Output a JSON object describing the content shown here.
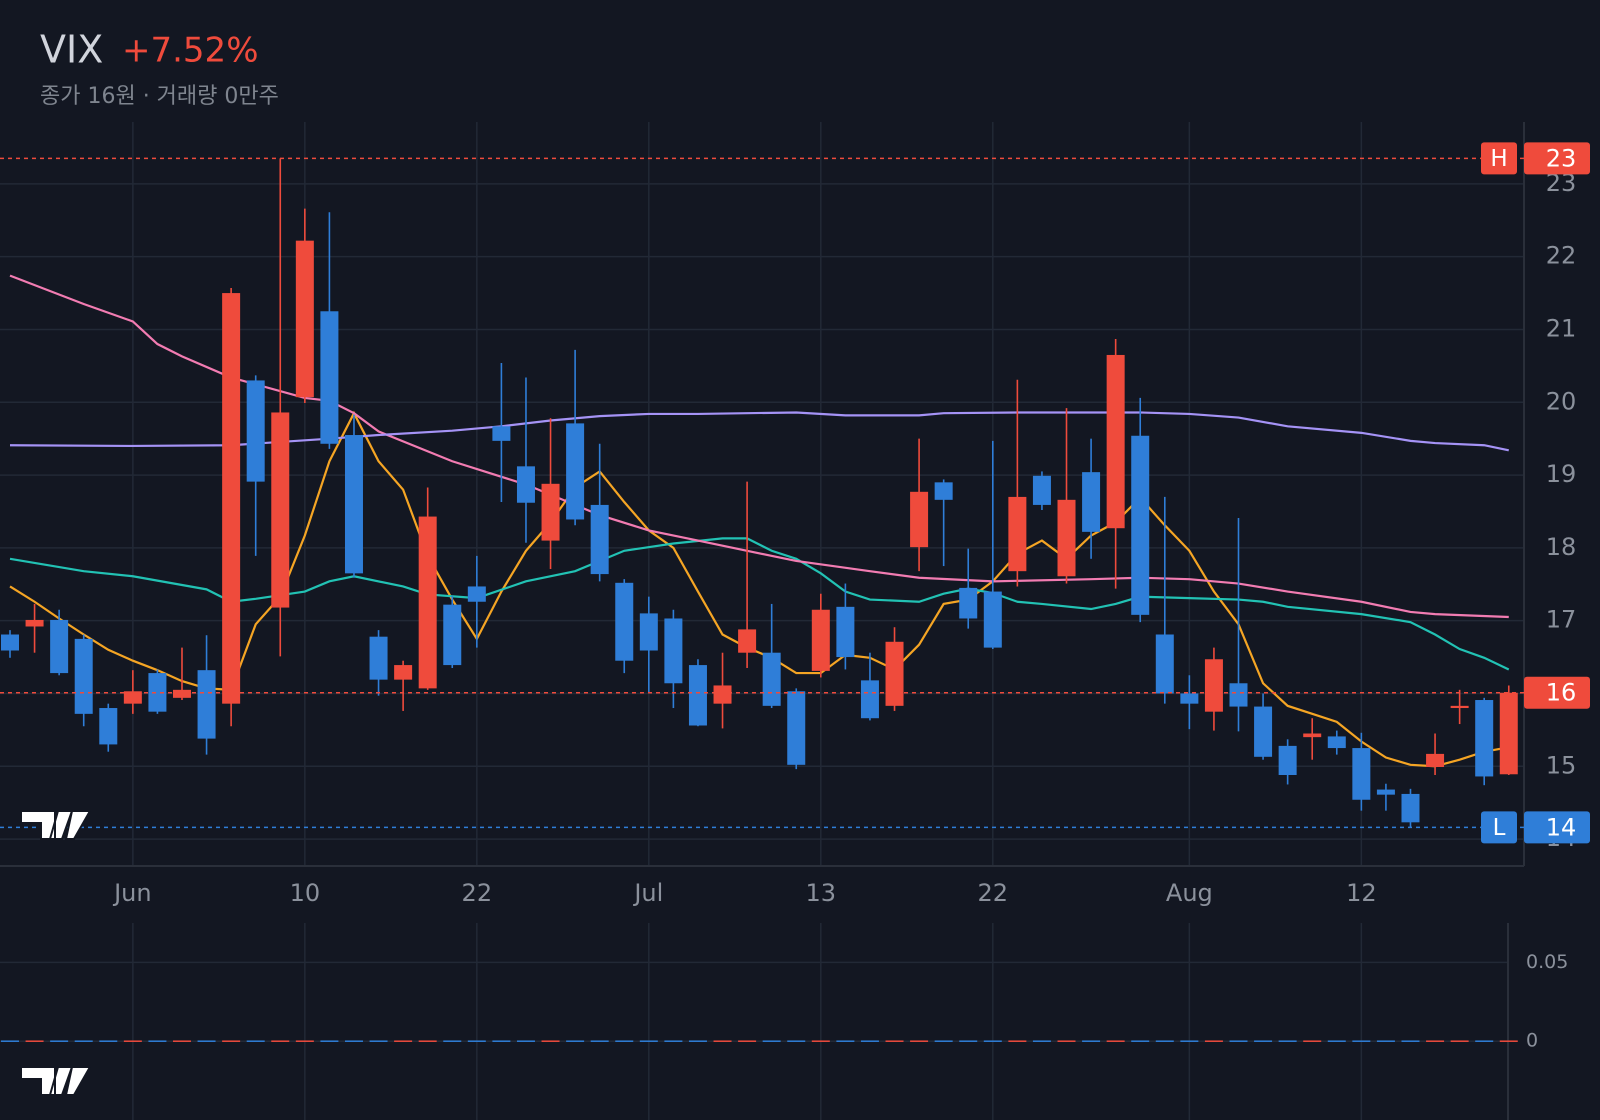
{
  "chart_data": {
    "type": "candlestick",
    "title": "VIX",
    "change": "+7.52%",
    "subtitle": "종가 16원 · 거래량 0만주",
    "categories": [
      null,
      null,
      null,
      null,
      null,
      "Jun",
      null,
      null,
      null,
      null,
      null,
      null,
      "10",
      null,
      null,
      null,
      null,
      null,
      null,
      "22",
      null,
      null,
      null,
      null,
      null,
      null,
      "Jul",
      null,
      null,
      null,
      null,
      null,
      null,
      "13",
      null,
      null,
      null,
      null,
      null,
      null,
      "22",
      null,
      null,
      null,
      null,
      null,
      null,
      null,
      "Aug",
      null,
      null,
      null,
      null,
      null,
      null,
      "12",
      null,
      null,
      null,
      null,
      null,
      null
    ],
    "open": [
      16.81,
      16.92,
      17.01,
      16.75,
      15.8,
      15.86,
      16.28,
      15.94,
      16.32,
      15.86,
      20.3,
      17.18,
      20.07,
      21.25,
      19.55,
      16.78,
      16.19,
      16.07,
      17.22,
      17.47,
      19.67,
      19.12,
      18.1,
      19.71,
      18.59,
      17.52,
      17.1,
      17.03,
      16.39,
      15.86,
      16.56,
      16.56,
      16.03,
      16.31,
      17.19,
      16.18,
      15.83,
      18.01,
      18.9,
      17.45,
      17.4,
      17.68,
      18.99,
      17.61,
      19.04,
      18.27,
      19.54,
      16.81,
      16.0,
      15.75,
      16.14,
      15.82,
      15.28,
      15.4,
      15.41,
      15.25,
      14.68,
      14.62,
      14.99,
      15.8,
      15.91,
      14.89
    ],
    "high": [
      16.87,
      17.23,
      17.15,
      16.81,
      15.86,
      16.32,
      16.33,
      16.63,
      16.8,
      21.57,
      20.37,
      23.35,
      22.66,
      22.61,
      19.83,
      16.87,
      16.45,
      18.83,
      17.34,
      17.89,
      20.54,
      20.34,
      19.78,
      20.72,
      19.43,
      17.57,
      17.33,
      17.15,
      16.47,
      16.56,
      18.91,
      17.23,
      16.07,
      17.37,
      17.51,
      16.56,
      16.91,
      19.5,
      18.94,
      17.99,
      19.47,
      20.31,
      19.05,
      19.92,
      19.5,
      20.87,
      20.06,
      18.7,
      16.25,
      16.63,
      18.41,
      16.0,
      15.37,
      15.66,
      15.49,
      15.46,
      14.76,
      14.69,
      15.45,
      16.05,
      15.94,
      16.11
    ],
    "low": [
      16.49,
      16.56,
      16.25,
      15.55,
      15.2,
      15.72,
      15.72,
      15.91,
      15.16,
      15.55,
      17.89,
      16.51,
      19.99,
      19.36,
      17.59,
      15.97,
      15.76,
      16.05,
      16.35,
      16.63,
      18.63,
      18.07,
      17.71,
      18.31,
      17.54,
      16.28,
      16.0,
      15.8,
      15.55,
      15.52,
      16.35,
      15.8,
      14.96,
      16.22,
      16.33,
      15.63,
      15.76,
      17.68,
      17.75,
      16.89,
      16.61,
      17.47,
      18.52,
      17.51,
      17.85,
      17.44,
      16.98,
      15.86,
      15.51,
      15.49,
      15.48,
      15.09,
      14.75,
      15.09,
      15.16,
      14.39,
      14.39,
      14.16,
      14.88,
      15.58,
      14.74,
      14.88
    ],
    "close": [
      16.59,
      17.01,
      16.28,
      15.72,
      15.3,
      16.03,
      15.75,
      16.05,
      15.38,
      21.5,
      18.91,
      19.86,
      22.22,
      19.43,
      17.65,
      16.19,
      16.39,
      18.43,
      16.39,
      17.26,
      19.47,
      18.62,
      18.88,
      18.39,
      17.64,
      16.45,
      16.59,
      16.14,
      15.56,
      16.11,
      16.88,
      15.83,
      15.02,
      17.15,
      16.5,
      15.66,
      16.71,
      18.77,
      18.66,
      17.03,
      16.63,
      18.7,
      18.59,
      18.66,
      18.22,
      20.65,
      17.08,
      16.0,
      15.86,
      16.47,
      15.82,
      15.13,
      14.88,
      15.45,
      15.25,
      14.54,
      14.61,
      14.23,
      15.17,
      15.83,
      14.86,
      16.01
    ],
    "up_color": "#ef4b3c",
    "down_color": "#2f7ed8",
    "moving_averages": [
      {
        "color": "#f5a524",
        "values": [
          17.47,
          17.26,
          17.03,
          16.81,
          16.6,
          16.45,
          16.32,
          16.17,
          16.07,
          16.05,
          16.95,
          17.33,
          18.17,
          19.19,
          19.85,
          19.19,
          18.8,
          17.89,
          17.29,
          16.75,
          17.4,
          17.96,
          18.35,
          18.83,
          19.05,
          18.63,
          18.24,
          18.0,
          17.4,
          16.81,
          16.63,
          16.49,
          16.28,
          16.28,
          16.53,
          16.49,
          16.33,
          16.67,
          17.23,
          17.29,
          17.54,
          17.92,
          18.1,
          17.85,
          18.17,
          18.35,
          18.69,
          18.31,
          17.96,
          17.4,
          16.95,
          16.14,
          15.83,
          15.72,
          15.61,
          15.34,
          15.12,
          15.02,
          15.0,
          15.09,
          15.2,
          15.26
        ]
      },
      {
        "color": "#22c2b4",
        "x": [
          0,
          3,
          5,
          8,
          9,
          10,
          12,
          13,
          14,
          16,
          17,
          19,
          21,
          23,
          25,
          27,
          29,
          30,
          31,
          32,
          33,
          34,
          35,
          37,
          38,
          39,
          40,
          41,
          42,
          44,
          45,
          46,
          48,
          50,
          51,
          52,
          55,
          57,
          58,
          59,
          60,
          61
        ],
        "values": [
          17.85,
          17.68,
          17.61,
          17.43,
          17.26,
          17.3,
          17.4,
          17.54,
          17.61,
          17.47,
          17.36,
          17.31,
          17.54,
          17.68,
          17.96,
          18.06,
          18.13,
          18.13,
          17.96,
          17.85,
          17.65,
          17.4,
          17.29,
          17.26,
          17.37,
          17.44,
          17.38,
          17.26,
          17.23,
          17.16,
          17.23,
          17.33,
          17.31,
          17.29,
          17.26,
          17.19,
          17.09,
          16.98,
          16.81,
          16.61,
          16.49,
          16.33
        ]
      },
      {
        "color": "#f27cb2",
        "x": [
          0,
          3,
          5,
          6,
          7,
          9,
          12,
          13,
          14,
          15,
          18,
          21,
          23,
          24,
          26,
          28,
          30,
          32,
          35,
          37,
          40,
          44,
          46,
          48,
          50,
          52,
          55,
          57,
          58,
          61
        ],
        "values": [
          21.74,
          21.35,
          21.11,
          20.8,
          20.63,
          20.34,
          20.06,
          20.02,
          19.85,
          19.6,
          19.19,
          18.87,
          18.59,
          18.45,
          18.24,
          18.1,
          17.96,
          17.82,
          17.68,
          17.59,
          17.54,
          17.57,
          17.59,
          17.57,
          17.51,
          17.4,
          17.26,
          17.12,
          17.09,
          17.05
        ]
      },
      {
        "color": "#a593f6",
        "x": [
          0,
          5,
          9,
          13,
          15,
          18,
          20,
          22,
          24,
          26,
          28,
          32,
          34,
          37,
          38,
          41,
          44,
          46,
          48,
          50,
          52,
          55,
          57,
          58,
          60,
          61
        ],
        "values": [
          19.41,
          19.4,
          19.41,
          19.5,
          19.55,
          19.61,
          19.67,
          19.75,
          19.81,
          19.84,
          19.84,
          19.86,
          19.82,
          19.82,
          19.85,
          19.86,
          19.86,
          19.86,
          19.84,
          19.79,
          19.67,
          19.58,
          19.47,
          19.44,
          19.41,
          19.34
        ]
      }
    ],
    "ylim": [
      13.63,
      23.85
    ],
    "yticks": [
      14,
      15,
      16,
      17,
      18,
      19,
      20,
      21,
      22,
      23
    ],
    "grid": true,
    "high_marker": {
      "letter": "H",
      "value": 23.35,
      "label": "23"
    },
    "low_marker": {
      "letter": "L",
      "value": 14.16,
      "label": "14"
    },
    "last_price": {
      "value": 16.01,
      "label": "16"
    },
    "volume": {
      "values": [
        0,
        0,
        0,
        0,
        0,
        0,
        0,
        0,
        0,
        0,
        0,
        0,
        0,
        0,
        0,
        0,
        0,
        0,
        0,
        0,
        0,
        0,
        0,
        0,
        0,
        0,
        0,
        0,
        0,
        0,
        0,
        0,
        0,
        0,
        0,
        0,
        0,
        0,
        0,
        0,
        0,
        0,
        0,
        0,
        0,
        0,
        0,
        0,
        0,
        0,
        0,
        0,
        0,
        0,
        0,
        0,
        0,
        0,
        0,
        0,
        0,
        0
      ],
      "ylim": [
        -0.05,
        0.075
      ],
      "yticks": [
        0,
        0.05
      ]
    }
  }
}
